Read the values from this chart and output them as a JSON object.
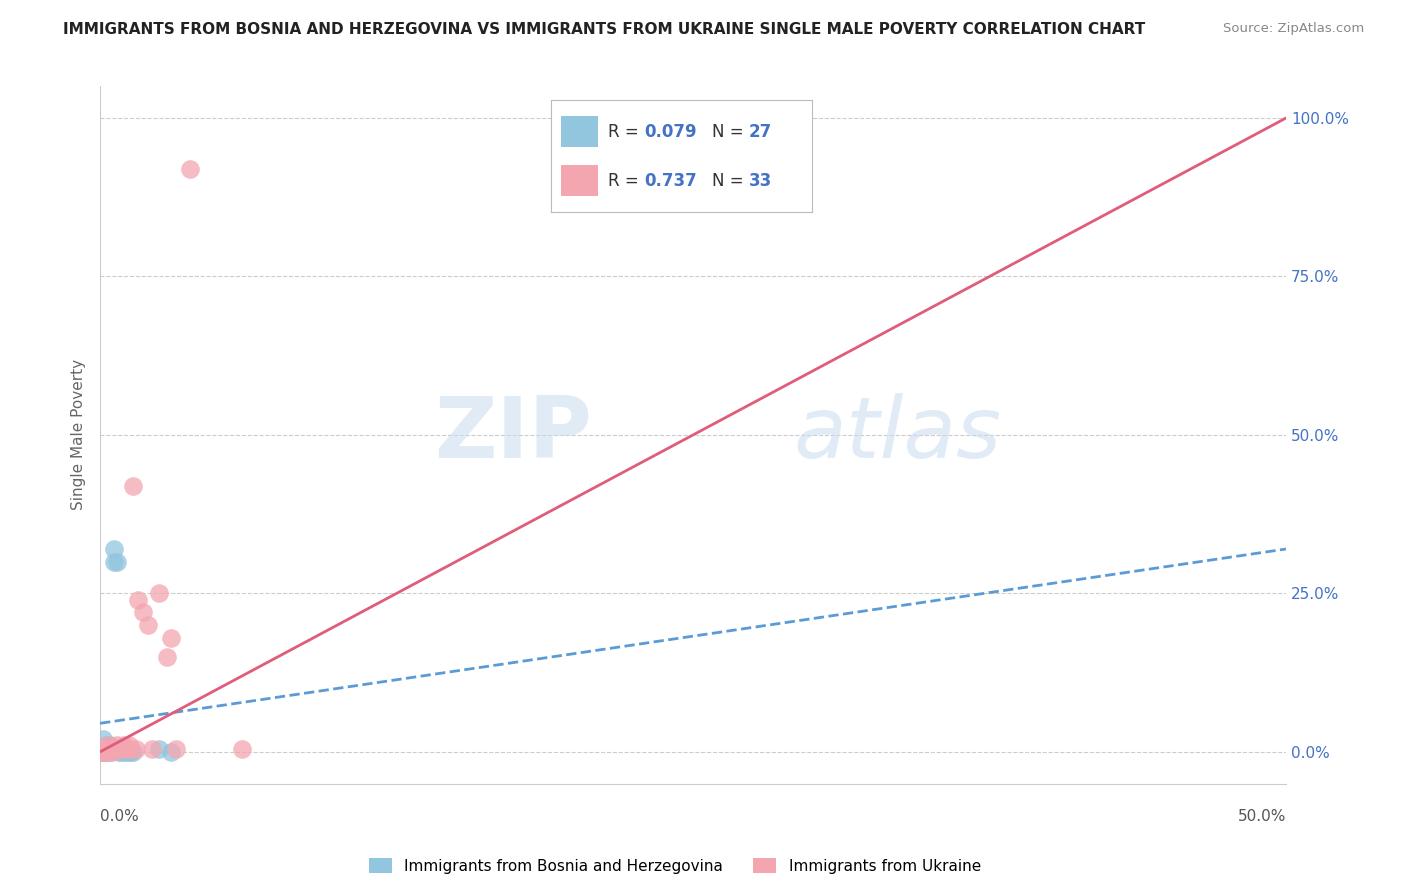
{
  "title": "IMMIGRANTS FROM BOSNIA AND HERZEGOVINA VS IMMIGRANTS FROM UKRAINE SINGLE MALE POVERTY CORRELATION CHART",
  "source": "Source: ZipAtlas.com",
  "ylabel": "Single Male Poverty",
  "legend1_label": "Immigrants from Bosnia and Herzegovina",
  "legend2_label": "Immigrants from Ukraine",
  "R1": 0.079,
  "N1": 27,
  "R2": 0.737,
  "N2": 33,
  "bosnia_color": "#92c5de",
  "ukraine_color": "#f4a6b0",
  "bosnia_line_color": "#5b9bd5",
  "ukraine_line_color": "#e05c7a",
  "watermark_zip": "ZIP",
  "watermark_atlas": "atlas",
  "background_color": "#ffffff",
  "grid_color": "#cccccc",
  "title_color": "#222222",
  "stat_color": "#4472c4",
  "source_color": "#888888",
  "bosnia_x": [
    0.0005,
    0.001,
    0.001,
    0.0015,
    0.002,
    0.002,
    0.0025,
    0.003,
    0.003,
    0.0035,
    0.004,
    0.004,
    0.005,
    0.005,
    0.006,
    0.006,
    0.007,
    0.007,
    0.008,
    0.009,
    0.01,
    0.011,
    0.012,
    0.013,
    0.014,
    0.025,
    0.03
  ],
  "bosnia_y": [
    0.0,
    0.0,
    0.02,
    0.0,
    0.0,
    0.005,
    0.0,
    0.0,
    0.01,
    0.005,
    0.0,
    0.01,
    0.005,
    0.005,
    0.3,
    0.32,
    0.3,
    0.005,
    0.0,
    0.0,
    0.0,
    0.0,
    0.0,
    0.0,
    0.0,
    0.005,
    0.0
  ],
  "ukraine_x": [
    0.0005,
    0.001,
    0.001,
    0.0015,
    0.002,
    0.002,
    0.003,
    0.003,
    0.004,
    0.005,
    0.005,
    0.006,
    0.006,
    0.007,
    0.007,
    0.008,
    0.009,
    0.01,
    0.011,
    0.012,
    0.013,
    0.014,
    0.015,
    0.016,
    0.018,
    0.02,
    0.022,
    0.025,
    0.028,
    0.03,
    0.032,
    0.038,
    0.06
  ],
  "ukraine_y": [
    0.0,
    0.0,
    0.005,
    0.0,
    0.0,
    0.005,
    0.0,
    0.01,
    0.005,
    0.0,
    0.005,
    0.005,
    0.005,
    0.01,
    0.005,
    0.005,
    0.005,
    0.01,
    0.005,
    0.01,
    0.005,
    0.42,
    0.005,
    0.24,
    0.22,
    0.2,
    0.005,
    0.25,
    0.15,
    0.18,
    0.005,
    0.92,
    0.005
  ],
  "ukraine_trendline_x": [
    0.0,
    0.5
  ],
  "ukraine_trendline_y": [
    0.0,
    1.0
  ],
  "bosnia_trendline_x": [
    0.0,
    0.5
  ],
  "bosnia_trendline_y": [
    0.045,
    0.32
  ],
  "xmin": 0.0,
  "xmax": 0.5,
  "ymin": -0.05,
  "ymax": 1.05
}
